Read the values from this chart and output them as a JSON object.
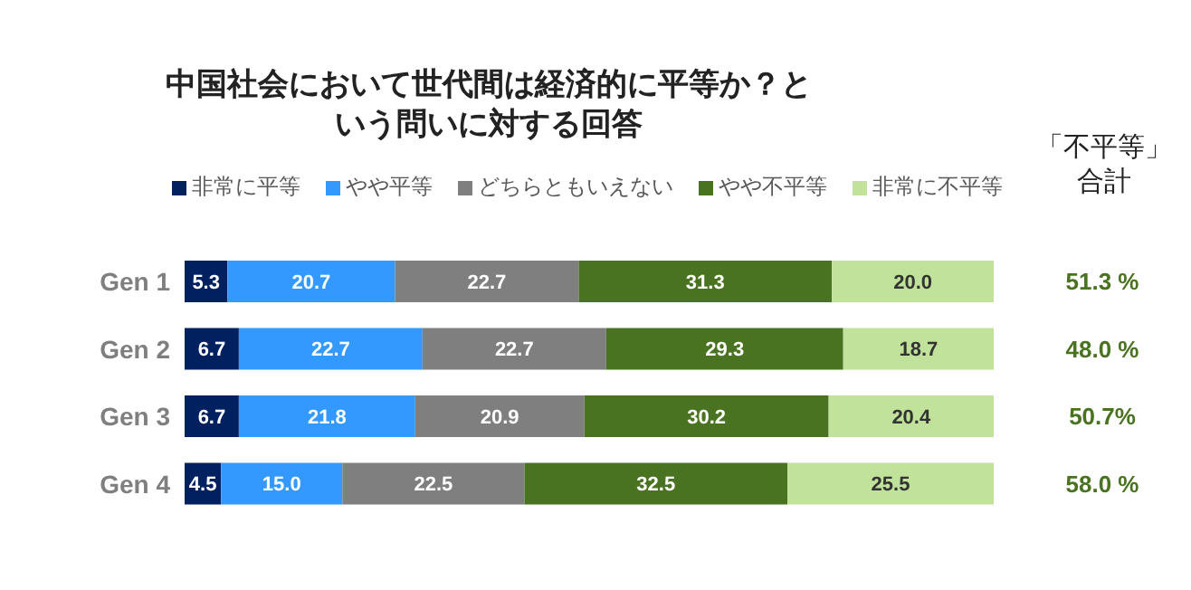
{
  "chart_data": {
    "type": "bar",
    "orientation": "horizontal",
    "stacked": true,
    "title": "中国社会において世代間は経済的に平等か？という問いに対する回答",
    "categories": [
      "Gen 1",
      "Gen 2",
      "Gen 3",
      "Gen 4"
    ],
    "series": [
      {
        "name": "非常に平等",
        "color": "#002060",
        "values": [
          5.3,
          6.7,
          6.7,
          4.5
        ],
        "value_labels": [
          "5.3",
          "6.7",
          "6.7",
          "4.5"
        ]
      },
      {
        "name": "やや平等",
        "color": "#3399ff",
        "values": [
          20.7,
          22.7,
          21.8,
          15.0
        ],
        "value_labels": [
          "20.7",
          "22.7",
          "21.8",
          "15.0"
        ]
      },
      {
        "name": "どちらともいえない",
        "color": "#7f7f7f",
        "values": [
          22.7,
          22.7,
          20.9,
          22.5
        ],
        "value_labels": [
          "22.7",
          "22.7",
          "20.9",
          "22.5"
        ]
      },
      {
        "name": "やや不平等",
        "color": "#4a7321",
        "values": [
          31.3,
          29.3,
          30.2,
          32.5
        ],
        "value_labels": [
          "31.3",
          "29.3",
          "30.2",
          "32.5"
        ]
      },
      {
        "name": "非常に不平等",
        "color": "#c1e29a",
        "values": [
          20.0,
          18.7,
          20.4,
          25.5
        ],
        "value_labels": [
          "20.0",
          "18.7",
          "20.4",
          "25.5"
        ]
      }
    ],
    "xlim": [
      0,
      100
    ],
    "tick_labels": "y",
    "legend": "top",
    "annotations": [
      "「不平等」合計",
      "51.3 %",
      "48.0 %",
      "50.7%",
      "58.0 %"
    ]
  }
}
